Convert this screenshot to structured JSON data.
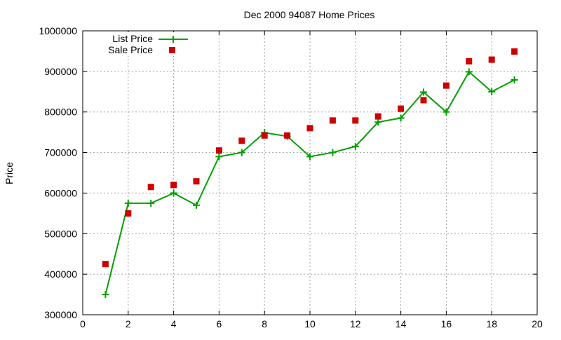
{
  "chart_data": {
    "type": "line",
    "title": "Dec 2000 94087 Home Prices",
    "xlabel": "",
    "ylabel": "Price",
    "xlim": [
      0,
      20
    ],
    "ylim": [
      300000,
      1000000
    ],
    "xticks": [
      "0",
      "2",
      "4",
      "6",
      "8",
      "10",
      "12",
      "14",
      "16",
      "18",
      "20"
    ],
    "yticks": [
      "300000",
      "400000",
      "500000",
      "600000",
      "700000",
      "800000",
      "900000",
      "1000000"
    ],
    "grid": true,
    "legend_position": "top-left",
    "x": [
      1,
      2,
      3,
      4,
      5,
      6,
      7,
      8,
      9,
      10,
      11,
      12,
      13,
      14,
      15,
      16,
      17,
      18,
      19
    ],
    "series": [
      {
        "name": "List Price",
        "style": "linespoints",
        "marker": "plus",
        "color": "#00a000",
        "values": [
          350000,
          575000,
          575000,
          600000,
          570000,
          690000,
          700000,
          749000,
          740000,
          690000,
          700000,
          715000,
          775000,
          785000,
          849000,
          800000,
          899000,
          850000,
          879000
        ]
      },
      {
        "name": "Sale Price",
        "style": "points",
        "marker": "square",
        "color": "#cc0000",
        "values": [
          425000,
          550000,
          615000,
          620000,
          629000,
          705000,
          729000,
          742000,
          742000,
          760000,
          779000,
          779000,
          789000,
          808000,
          829000,
          865000,
          925000,
          929000,
          949000
        ]
      }
    ]
  }
}
